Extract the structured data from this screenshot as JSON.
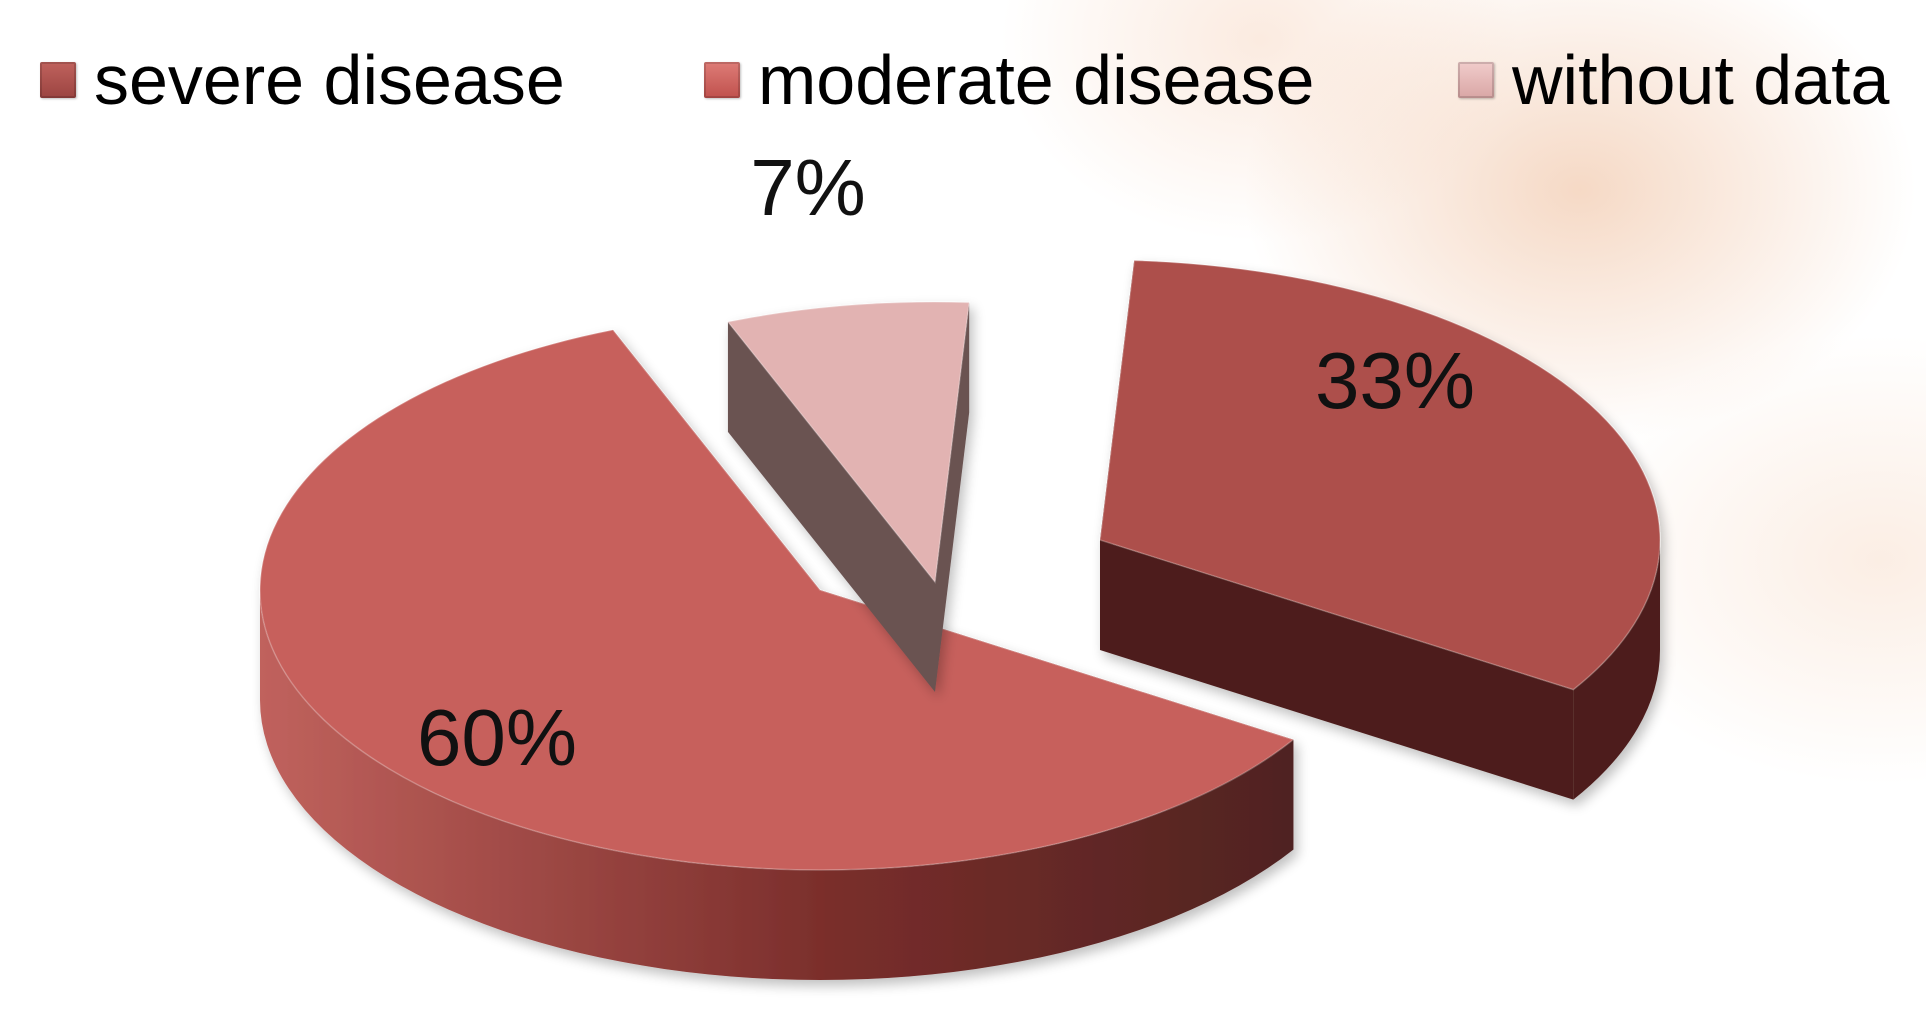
{
  "chart_data": {
    "type": "pie",
    "title": "",
    "legend_position": "top",
    "categories": [
      "severe disease",
      "moderate disease",
      "without data"
    ],
    "values": [
      33,
      60,
      7
    ],
    "value_labels": [
      "33%",
      "60%",
      "7%"
    ],
    "colors": {
      "severe disease": "#ad4f4b",
      "moderate disease": "#c7605c",
      "without data": "#e2b3b2"
    },
    "exploded": true,
    "three_d": true
  }
}
